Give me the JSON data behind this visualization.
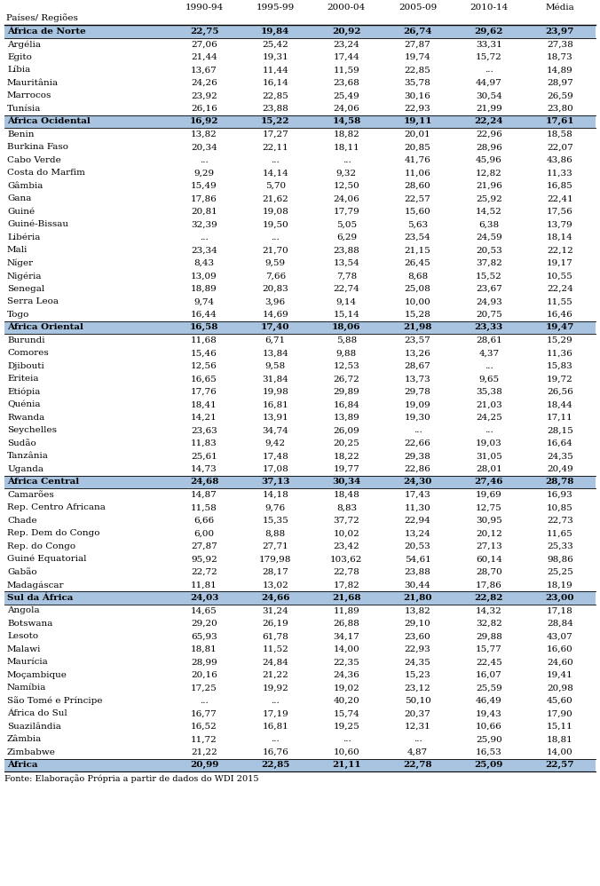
{
  "footer": "Fonte: Elaboração Própria a partir de dados do WDI 2015",
  "columns": [
    "Países/ Regiões",
    "1990-94",
    "1995-99",
    "2000-04",
    "2005-09",
    "2010-14",
    "Média"
  ],
  "region_bg": "#a8c4e0",
  "rows": [
    {
      "name": "África de Norte",
      "type": "region",
      "vals": [
        "22,75",
        "19,84",
        "20,92",
        "26,74",
        "29,62",
        "23,97"
      ]
    },
    {
      "name": "Argélia",
      "type": "country",
      "vals": [
        "27,06",
        "25,42",
        "23,24",
        "27,87",
        "33,31",
        "27,38"
      ]
    },
    {
      "name": "Egito",
      "type": "country",
      "vals": [
        "21,44",
        "19,31",
        "17,44",
        "19,74",
        "15,72",
        "18,73"
      ]
    },
    {
      "name": "Líbia",
      "type": "country",
      "vals": [
        "13,67",
        "11,44",
        "11,59",
        "22,85",
        "...",
        "14,89"
      ]
    },
    {
      "name": "Mauritânia",
      "type": "country",
      "vals": [
        "24,26",
        "16,14",
        "23,68",
        "35,78",
        "44,97",
        "28,97"
      ]
    },
    {
      "name": "Marrocos",
      "type": "country",
      "vals": [
        "23,92",
        "22,85",
        "25,49",
        "30,16",
        "30,54",
        "26,59"
      ]
    },
    {
      "name": "Tunísia",
      "type": "country",
      "vals": [
        "26,16",
        "23,88",
        "24,06",
        "22,93",
        "21,99",
        "23,80"
      ]
    },
    {
      "name": "África Ocidental",
      "type": "region",
      "vals": [
        "16,92",
        "15,22",
        "14,58",
        "19,11",
        "22,24",
        "17,61"
      ]
    },
    {
      "name": "Benin",
      "type": "country",
      "vals": [
        "13,82",
        "17,27",
        "18,82",
        "20,01",
        "22,96",
        "18,58"
      ]
    },
    {
      "name": "Burkina Faso",
      "type": "country",
      "vals": [
        "20,34",
        "22,11",
        "18,11",
        "20,85",
        "28,96",
        "22,07"
      ]
    },
    {
      "name": "Cabo Verde",
      "type": "country",
      "vals": [
        "...",
        "...",
        "...",
        "41,76",
        "45,96",
        "43,86"
      ]
    },
    {
      "name": "Costa do Marfim",
      "type": "country",
      "vals": [
        "9,29",
        "14,14",
        "9,32",
        "11,06",
        "12,82",
        "11,33"
      ]
    },
    {
      "name": "Gâmbia",
      "type": "country",
      "vals": [
        "15,49",
        "5,70",
        "12,50",
        "28,60",
        "21,96",
        "16,85"
      ]
    },
    {
      "name": "Gana",
      "type": "country",
      "vals": [
        "17,86",
        "21,62",
        "24,06",
        "22,57",
        "25,92",
        "22,41"
      ]
    },
    {
      "name": "Guiné",
      "type": "country",
      "vals": [
        "20,81",
        "19,08",
        "17,79",
        "15,60",
        "14,52",
        "17,56"
      ]
    },
    {
      "name": "Guiné-Bissau",
      "type": "country",
      "vals": [
        "32,39",
        "19,50",
        "5,05",
        "5,63",
        "6,38",
        "13,79"
      ]
    },
    {
      "name": "Libéria",
      "type": "country",
      "vals": [
        "...",
        "...",
        "6,29",
        "23,54",
        "24,59",
        "18,14"
      ]
    },
    {
      "name": "Mali",
      "type": "country",
      "vals": [
        "23,34",
        "21,70",
        "23,88",
        "21,15",
        "20,53",
        "22,12"
      ]
    },
    {
      "name": "Níger",
      "type": "country",
      "vals": [
        "8,43",
        "9,59",
        "13,54",
        "26,45",
        "37,82",
        "19,17"
      ]
    },
    {
      "name": "Nigéria",
      "type": "country",
      "vals": [
        "13,09",
        "7,66",
        "7,78",
        "8,68",
        "15,52",
        "10,55"
      ]
    },
    {
      "name": "Senegal",
      "type": "country",
      "vals": [
        "18,89",
        "20,83",
        "22,74",
        "25,08",
        "23,67",
        "22,24"
      ]
    },
    {
      "name": "Serra Leoa",
      "type": "country",
      "vals": [
        "9,74",
        "3,96",
        "9,14",
        "10,00",
        "24,93",
        "11,55"
      ]
    },
    {
      "name": "Togo",
      "type": "country",
      "vals": [
        "16,44",
        "14,69",
        "15,14",
        "15,28",
        "20,75",
        "16,46"
      ]
    },
    {
      "name": "África Oriental",
      "type": "region",
      "vals": [
        "16,58",
        "17,40",
        "18,06",
        "21,98",
        "23,33",
        "19,47"
      ]
    },
    {
      "name": "Burundi",
      "type": "country",
      "vals": [
        "11,68",
        "6,71",
        "5,88",
        "23,57",
        "28,61",
        "15,29"
      ]
    },
    {
      "name": "Comores",
      "type": "country",
      "vals": [
        "15,46",
        "13,84",
        "9,88",
        "13,26",
        "4,37",
        "11,36"
      ]
    },
    {
      "name": "Djibouti",
      "type": "country",
      "vals": [
        "12,56",
        "9,58",
        "12,53",
        "28,67",
        "...",
        "15,83"
      ]
    },
    {
      "name": "Eriteia",
      "type": "country",
      "vals": [
        "16,65",
        "31,84",
        "26,72",
        "13,73",
        "9,65",
        "19,72"
      ]
    },
    {
      "name": "Etiópia",
      "type": "country",
      "vals": [
        "17,76",
        "19,98",
        "29,89",
        "29,78",
        "35,38",
        "26,56"
      ]
    },
    {
      "name": "Quénia",
      "type": "country",
      "vals": [
        "18,41",
        "16,81",
        "16,84",
        "19,09",
        "21,03",
        "18,44"
      ]
    },
    {
      "name": "Rwanda",
      "type": "country",
      "vals": [
        "14,21",
        "13,91",
        "13,89",
        "19,30",
        "24,25",
        "17,11"
      ]
    },
    {
      "name": "Seychelles",
      "type": "country",
      "vals": [
        "23,63",
        "34,74",
        "26,09",
        "...",
        "...",
        "28,15"
      ]
    },
    {
      "name": "Sudão",
      "type": "country",
      "vals": [
        "11,83",
        "9,42",
        "20,25",
        "22,66",
        "19,03",
        "16,64"
      ]
    },
    {
      "name": "Tanzânia",
      "type": "country",
      "vals": [
        "25,61",
        "17,48",
        "18,22",
        "29,38",
        "31,05",
        "24,35"
      ]
    },
    {
      "name": "Uganda",
      "type": "country",
      "vals": [
        "14,73",
        "17,08",
        "19,77",
        "22,86",
        "28,01",
        "20,49"
      ]
    },
    {
      "name": "África Central",
      "type": "region",
      "vals": [
        "24,68",
        "37,13",
        "30,34",
        "24,30",
        "27,46",
        "28,78"
      ]
    },
    {
      "name": "Camarões",
      "type": "country",
      "vals": [
        "14,87",
        "14,18",
        "18,48",
        "17,43",
        "19,69",
        "16,93"
      ]
    },
    {
      "name": "Rep. Centro Africana",
      "type": "country",
      "vals": [
        "11,58",
        "9,76",
        "8,83",
        "11,30",
        "12,75",
        "10,85"
      ]
    },
    {
      "name": "Chade",
      "type": "country",
      "vals": [
        "6,66",
        "15,35",
        "37,72",
        "22,94",
        "30,95",
        "22,73"
      ]
    },
    {
      "name": "Rep. Dem do Congo",
      "type": "country",
      "vals": [
        "6,00",
        "8,88",
        "10,02",
        "13,24",
        "20,12",
        "11,65"
      ]
    },
    {
      "name": "Rep. do Congo",
      "type": "country",
      "vals": [
        "27,87",
        "27,71",
        "23,42",
        "20,53",
        "27,13",
        "25,33"
      ]
    },
    {
      "name": "Guiné Equatorial",
      "type": "country",
      "vals": [
        "95,92",
        "179,98",
        "103,62",
        "54,61",
        "60,14",
        "98,86"
      ]
    },
    {
      "name": "Gabão",
      "type": "country",
      "vals": [
        "22,72",
        "28,17",
        "22,78",
        "23,88",
        "28,70",
        "25,25"
      ]
    },
    {
      "name": "Madagáscar",
      "type": "country",
      "vals": [
        "11,81",
        "13,02",
        "17,82",
        "30,44",
        "17,86",
        "18,19"
      ]
    },
    {
      "name": "Sul da África",
      "type": "region",
      "vals": [
        "24,03",
        "24,66",
        "21,68",
        "21,80",
        "22,82",
        "23,00"
      ]
    },
    {
      "name": "Angola",
      "type": "country",
      "vals": [
        "14,65",
        "31,24",
        "11,89",
        "13,82",
        "14,32",
        "17,18"
      ]
    },
    {
      "name": "Botswana",
      "type": "country",
      "vals": [
        "29,20",
        "26,19",
        "26,88",
        "29,10",
        "32,82",
        "28,84"
      ]
    },
    {
      "name": "Lesoto",
      "type": "country",
      "vals": [
        "65,93",
        "61,78",
        "34,17",
        "23,60",
        "29,88",
        "43,07"
      ]
    },
    {
      "name": "Malawi",
      "type": "country",
      "vals": [
        "18,81",
        "11,52",
        "14,00",
        "22,93",
        "15,77",
        "16,60"
      ]
    },
    {
      "name": "Maurícia",
      "type": "country",
      "vals": [
        "28,99",
        "24,84",
        "22,35",
        "24,35",
        "22,45",
        "24,60"
      ]
    },
    {
      "name": "Moçambique",
      "type": "country",
      "vals": [
        "20,16",
        "21,22",
        "24,36",
        "15,23",
        "16,07",
        "19,41"
      ]
    },
    {
      "name": "Namíbia",
      "type": "country",
      "vals": [
        "17,25",
        "19,92",
        "19,02",
        "23,12",
        "25,59",
        "20,98"
      ]
    },
    {
      "name": "São Tomé e Príncipe",
      "type": "country",
      "vals": [
        "...",
        "...",
        "40,20",
        "50,10",
        "46,49",
        "45,60"
      ]
    },
    {
      "name": "África do Sul",
      "type": "country",
      "vals": [
        "16,77",
        "17,19",
        "15,74",
        "20,37",
        "19,43",
        "17,90"
      ]
    },
    {
      "name": "Suazilândia",
      "type": "country",
      "vals": [
        "16,52",
        "16,81",
        "19,25",
        "12,31",
        "10,66",
        "15,11"
      ]
    },
    {
      "name": "Zâmbia",
      "type": "country",
      "vals": [
        "11,72",
        "...",
        "...",
        "...",
        "25,90",
        "18,81"
      ]
    },
    {
      "name": "Zimbabwe",
      "type": "country",
      "vals": [
        "21,22",
        "16,76",
        "10,60",
        "4,87",
        "16,53",
        "14,00"
      ]
    },
    {
      "name": "África",
      "type": "region",
      "vals": [
        "20,99",
        "22,85",
        "21,11",
        "22,78",
        "25,09",
        "22,57"
      ]
    }
  ]
}
